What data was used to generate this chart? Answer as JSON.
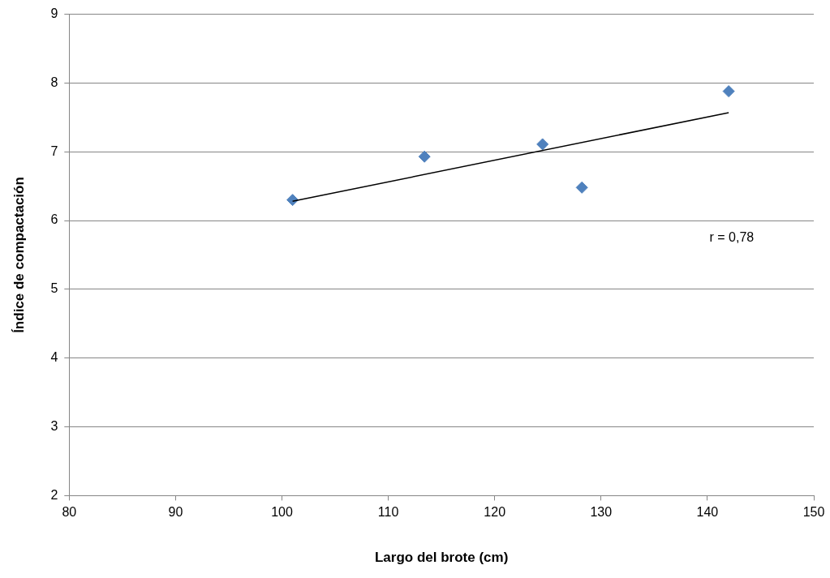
{
  "chart_data": {
    "type": "scatter",
    "xlabel": "Largo del brote (cm)",
    "ylabel": "Índice de compactación",
    "series": [
      {
        "type": "scatter",
        "color": "#4f81bd",
        "marker": "diamond",
        "x": [
          101,
          113.4,
          124.5,
          128.2,
          142
        ],
        "values": [
          6.3,
          6.93,
          7.11,
          6.48,
          7.88
        ]
      },
      {
        "type": "line",
        "color": "#000000",
        "marker": "none",
        "x": [
          101,
          142
        ],
        "values": [
          6.28,
          7.57
        ]
      }
    ],
    "xlim": [
      80,
      150
    ],
    "xticks": [
      80,
      90,
      100,
      110,
      120,
      130,
      140,
      150
    ],
    "ylim": [
      2,
      9
    ],
    "yticks": [
      2,
      3,
      4,
      5,
      6,
      7,
      8,
      9
    ],
    "grid": "y",
    "legend": false,
    "annotations": [
      "r = 0,78"
    ]
  }
}
